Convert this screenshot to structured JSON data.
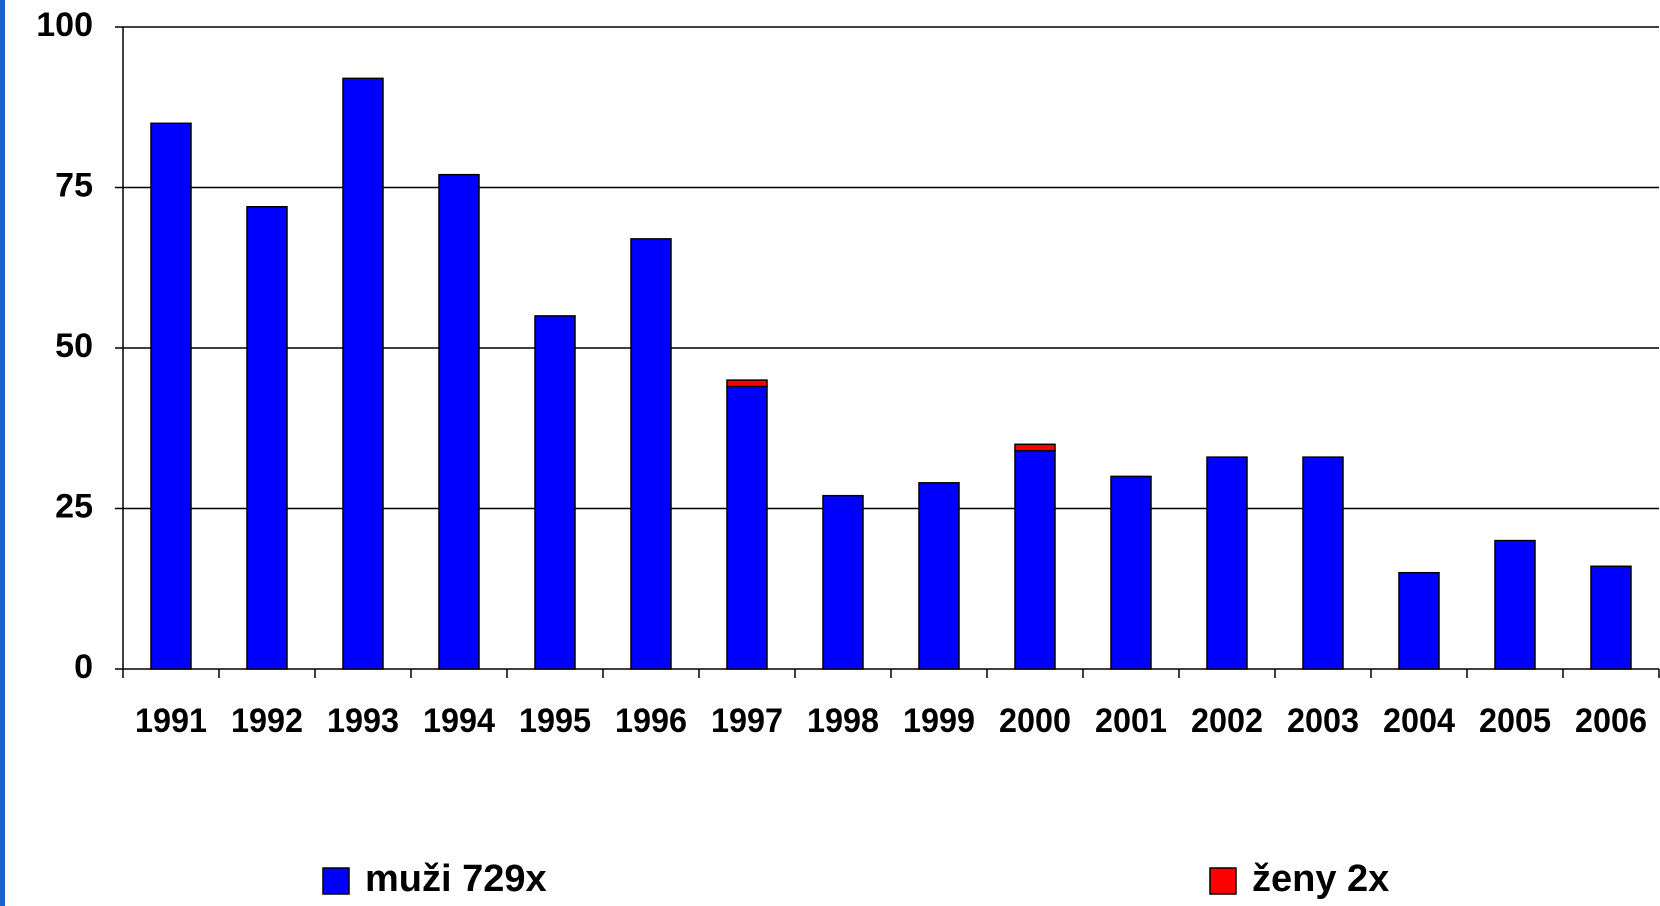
{
  "chart_data": {
    "type": "stacked-bar",
    "categories": [
      "1991",
      "1992",
      "1993",
      "1994",
      "1995",
      "1996",
      "1997",
      "1998",
      "1999",
      "2000",
      "2001",
      "2002",
      "2003",
      "2004",
      "2005",
      "2006"
    ],
    "series": [
      {
        "name": "muži 729x",
        "color": "#0000ff",
        "values": [
          85,
          72,
          92,
          77,
          55,
          67,
          44,
          27,
          29,
          34,
          30,
          33,
          33,
          15,
          20,
          16
        ]
      },
      {
        "name": "ženy 2x",
        "color": "#ff0000",
        "values": [
          0,
          0,
          0,
          0,
          0,
          0,
          1,
          0,
          0,
          1,
          0,
          0,
          0,
          0,
          0,
          0
        ]
      }
    ],
    "ylim": [
      0,
      100
    ],
    "yticks": [
      0,
      25,
      50,
      75,
      100
    ],
    "grid": true,
    "legend": "bottom"
  }
}
